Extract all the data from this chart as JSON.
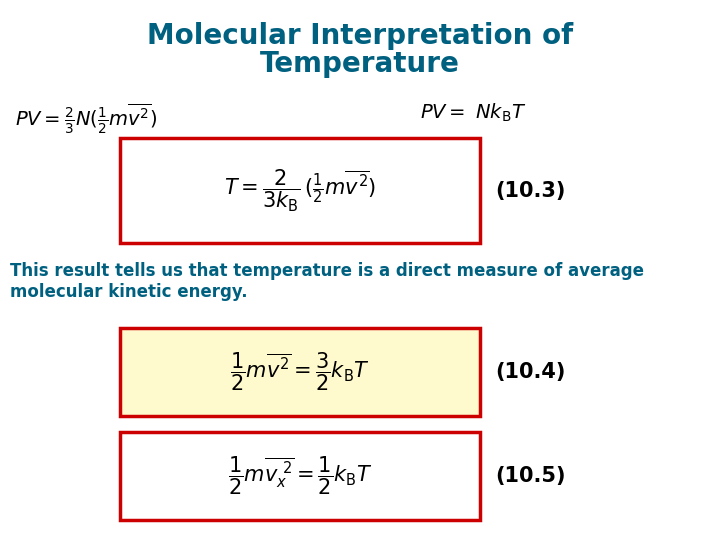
{
  "title_line1": "Molecular Interpretation of",
  "title_line2": "Temperature",
  "title_color": "#006080",
  "title_fontsize": 20,
  "background_color": "#ffffff",
  "text_body": "This result tells us that temperature is a direct measure of average\nmolecular kinetic energy.",
  "text_color": "#006080",
  "box1_facecolor": "#ffffff",
  "box1_edgecolor": "#cc0000",
  "box2_facecolor": "#fffacd",
  "box2_edgecolor": "#cc0000",
  "box3_facecolor": "#ffffff",
  "box3_edgecolor": "#cc0000",
  "label_fontsize": 15,
  "eq_fontsize": 16,
  "body_fontsize": 12
}
